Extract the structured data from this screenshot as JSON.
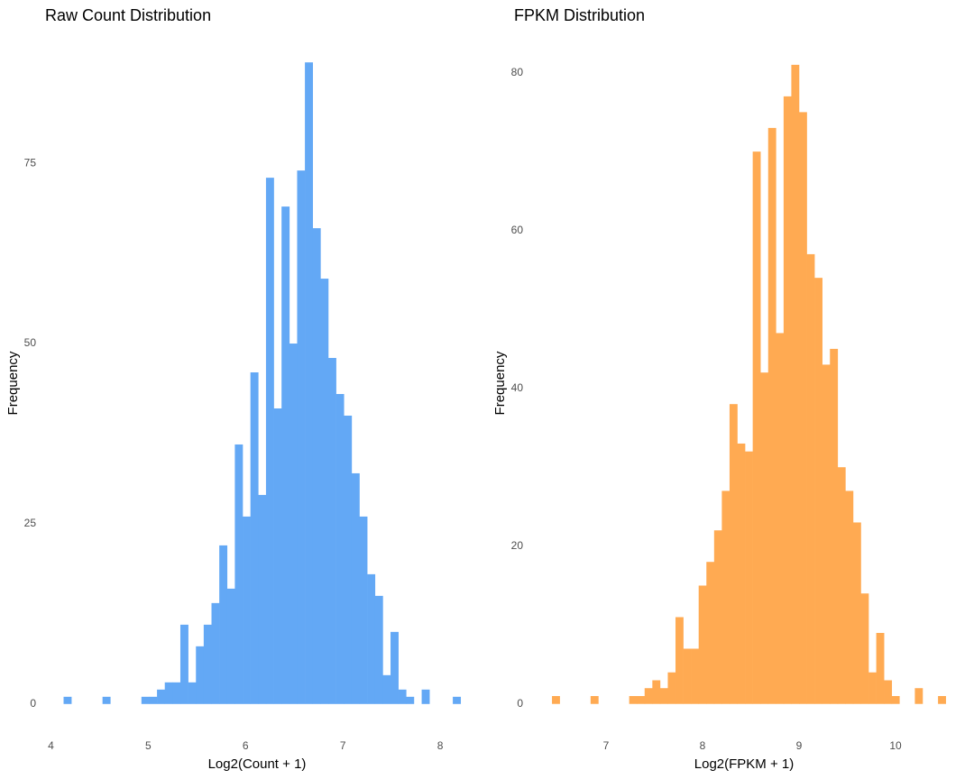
{
  "chart_data": [
    {
      "type": "histogram",
      "title": "Raw Count Distribution",
      "x_label": "Log2(Count + 1)",
      "y_label": "Frequency",
      "color": "#63a8f5",
      "grid": false,
      "bins": [
        4.13,
        4.21,
        4.29,
        4.37,
        4.45,
        4.53,
        4.61,
        4.69,
        4.77,
        4.85,
        4.93,
        5.01,
        5.09,
        5.17,
        5.25,
        5.33,
        5.41,
        5.49,
        5.57,
        5.65,
        5.73,
        5.81,
        5.89,
        5.97,
        6.05,
        6.13,
        6.21,
        6.29,
        6.37,
        6.45,
        6.53,
        6.61,
        6.69,
        6.77,
        6.85,
        6.93,
        7.01,
        7.09,
        7.17,
        7.25,
        7.33,
        7.41,
        7.49,
        7.57,
        7.65,
        7.73,
        7.81,
        7.89,
        7.97,
        8.05,
        8.13,
        8.21
      ],
      "values": [
        1,
        0,
        0,
        0,
        0,
        1,
        0,
        0,
        0,
        0,
        1,
        1,
        2,
        3,
        3,
        11,
        3,
        8,
        11,
        14,
        22,
        16,
        36,
        26,
        46,
        29,
        73,
        41,
        69,
        50,
        74,
        89,
        66,
        59,
        48,
        43,
        40,
        32,
        26,
        18,
        15,
        4,
        10,
        2,
        1,
        0,
        2,
        0,
        0,
        0,
        1
      ],
      "xlim": [
        3.94,
        8.296
      ],
      "xticks": [
        4,
        5,
        6,
        7,
        8
      ],
      "ylim": [
        -2.4,
        91.4
      ],
      "yticks": [
        0,
        25,
        50,
        75
      ]
    },
    {
      "type": "histogram",
      "title": "FPKM Distribution",
      "x_label": "Log2(FPKM + 1)",
      "y_label": "Frequency",
      "color": "#ffaa52",
      "grid": false,
      "bins": [
        6.44,
        6.52,
        6.6,
        6.68,
        6.76,
        6.84,
        6.92,
        7.0,
        7.08,
        7.16,
        7.24,
        7.32,
        7.4,
        7.48,
        7.56,
        7.64,
        7.72,
        7.8,
        7.88,
        7.96,
        8.04,
        8.12,
        8.2,
        8.28,
        8.36,
        8.44,
        8.52,
        8.6,
        8.68,
        8.76,
        8.84,
        8.92,
        9.0,
        9.08,
        9.16,
        9.24,
        9.32,
        9.4,
        9.48,
        9.56,
        9.64,
        9.72,
        9.8,
        9.88,
        9.96,
        10.04,
        10.12,
        10.2,
        10.28,
        10.36,
        10.44,
        10.52
      ],
      "values": [
        1,
        0,
        0,
        0,
        0,
        1,
        0,
        0,
        0,
        0,
        1,
        1,
        2,
        3,
        2,
        4,
        11,
        7,
        7,
        15,
        18,
        22,
        27,
        38,
        33,
        32,
        70,
        42,
        73,
        47,
        77,
        81,
        75,
        57,
        54,
        43,
        45,
        30,
        27,
        23,
        14,
        4,
        9,
        3,
        1,
        0,
        0,
        2,
        0,
        0,
        1
      ],
      "xlim": [
        6.234,
        10.626
      ],
      "xticks": [
        7,
        8,
        9,
        10
      ],
      "ylim": [
        -2.2,
        83.5
      ],
      "yticks": [
        0,
        20,
        40,
        60,
        80
      ]
    }
  ]
}
